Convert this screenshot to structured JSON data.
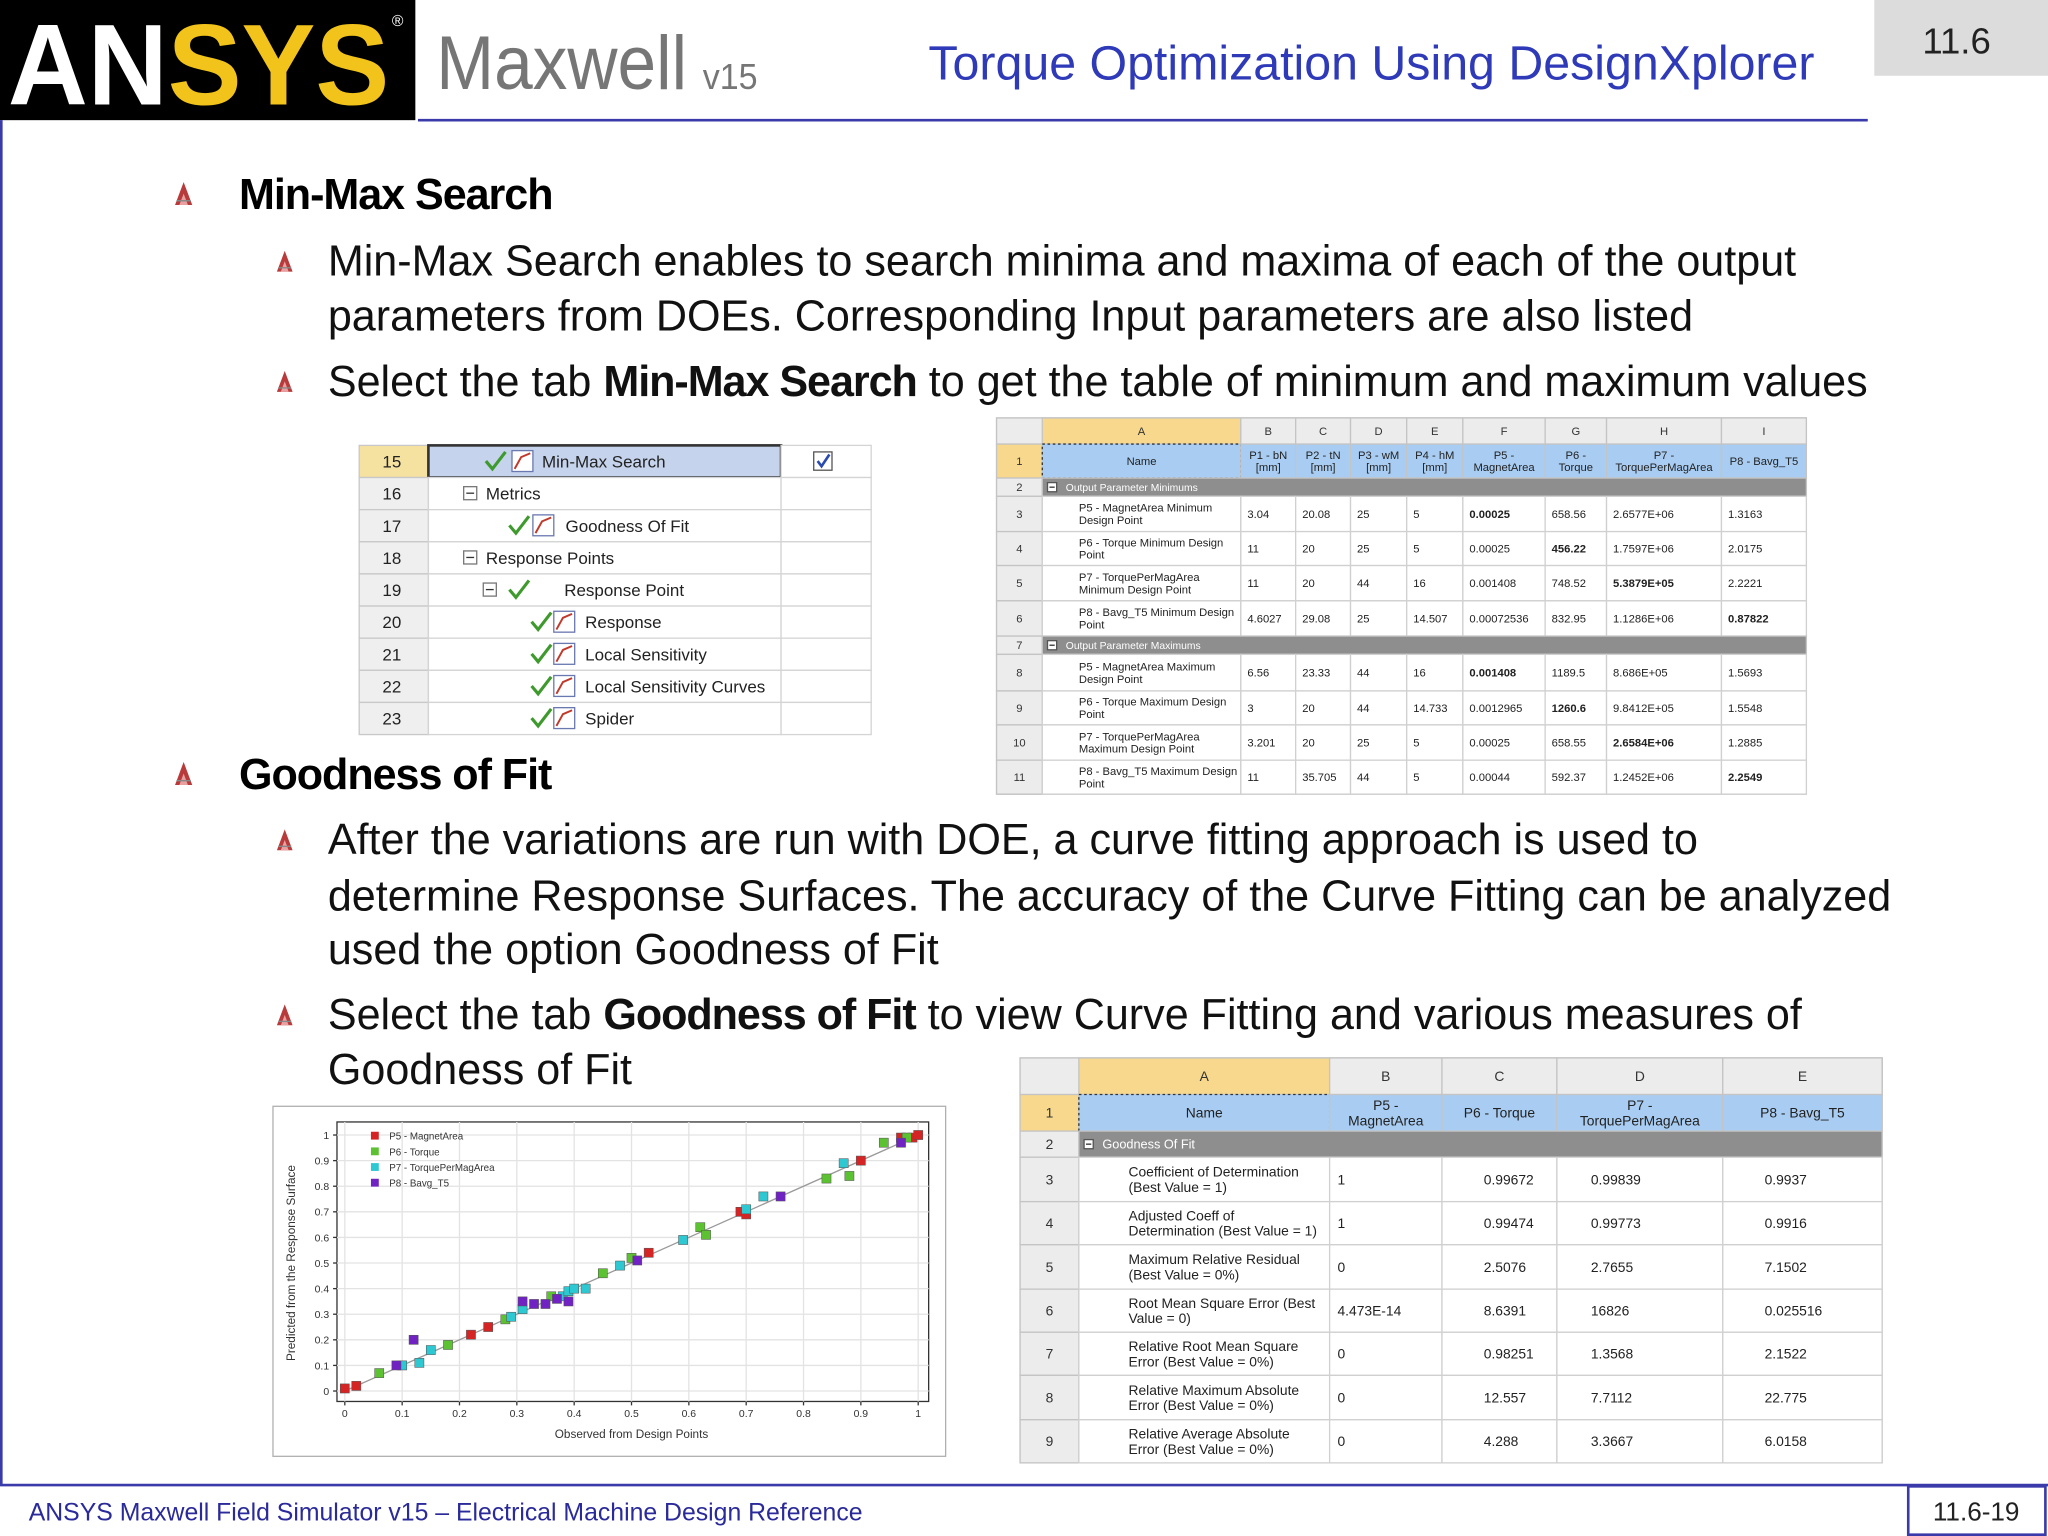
{
  "header": {
    "logo": {
      "part1": "AN",
      "part2": "SYS",
      "mark": "®"
    },
    "product": "Maxwell",
    "version": "v15",
    "title": "Torque Optimization Using DesignXplorer",
    "section": "11.6"
  },
  "sections": [
    {
      "heading": "Min-Max Search",
      "items": [
        {
          "lines": [
            [
              {
                "text": "Min-Max Search enables to search minima and maxima of each of the output"
              }
            ],
            [
              {
                "text": "parameters from DOEs. Corresponding Input parameters are also listed"
              }
            ]
          ]
        },
        {
          "lines": [
            [
              {
                "text": "Select the tab "
              },
              {
                "text": "Min-Max Search",
                "bold": true
              },
              {
                "text": " to get the table of minimum and maximum values"
              }
            ]
          ]
        }
      ]
    },
    {
      "heading": "Goodness of Fit",
      "items": [
        {
          "lines": [
            [
              {
                "text": "After the variations are run with DOE, a curve fitting approach is used to"
              }
            ],
            [
              {
                "text": "determine Response Surfaces. The accuracy of the Curve Fitting can be analyzed"
              }
            ],
            [
              {
                "text": "used the option Goodness of Fit"
              }
            ]
          ]
        },
        {
          "lines": [
            [
              {
                "text": "Select the tab "
              },
              {
                "text": "Goodness of Fit",
                "bold": true
              },
              {
                "text": " to view Curve Fitting and various measures of"
              }
            ],
            [
              {
                "text": "Goodness of Fit"
              }
            ]
          ]
        }
      ]
    }
  ],
  "tree": {
    "rows": [
      {
        "number": "15",
        "label": "Min-Max Search"
      },
      {
        "number": "16",
        "label": "Metrics"
      },
      {
        "number": "17",
        "label": "Goodness Of Fit"
      },
      {
        "number": "18",
        "label": "Response Points"
      },
      {
        "number": "19",
        "label": "Response Point"
      },
      {
        "number": "20",
        "label": "Response"
      },
      {
        "number": "21",
        "label": "Local Sensitivity"
      },
      {
        "number": "22",
        "label": "Local Sensitivity Curves"
      },
      {
        "number": "23",
        "label": "Spider"
      }
    ]
  },
  "min_max_table": {
    "columns": [
      "A",
      "B",
      "C",
      "D",
      "E",
      "F",
      "G",
      "H",
      "I"
    ],
    "row_numbers": [
      "1",
      "2",
      "3",
      "4",
      "5",
      "6",
      "7",
      "8",
      "9",
      "10",
      "11"
    ],
    "header": [
      [
        "Name"
      ],
      [
        "P1 - bN",
        "[mm]"
      ],
      [
        "P2 - tN",
        "[mm]"
      ],
      [
        "P3 - wM",
        "[mm]"
      ],
      [
        "P4 - hM",
        "[mm]"
      ],
      [
        "P5 -",
        "MagnetArea"
      ],
      [
        "P6 -",
        "Torque"
      ],
      [
        "P7 -",
        "TorquePerMagArea"
      ],
      [
        "P8 - Bavg_T5"
      ]
    ],
    "rows": [
      {
        "group": "Output Parameter Minimums"
      },
      {
        "cells": [
          "P5 - MagnetArea Minimum Design Point",
          "3.04",
          "20.08",
          "25",
          "5",
          "0.00025",
          "658.56",
          "2.6577E+06",
          "1.3163"
        ]
      },
      {
        "cells": [
          "P6 - Torque Minimum Design Point",
          "11",
          "20",
          "25",
          "5",
          "0.00025",
          "456.22",
          "1.7597E+06",
          "2.0175"
        ]
      },
      {
        "cells": [
          "P7 - TorquePerMagArea Minimum Design Point",
          "11",
          "20",
          "44",
          "16",
          "0.001408",
          "748.52",
          "5.3879E+05",
          "2.2221"
        ]
      },
      {
        "cells": [
          "P8 - Bavg_T5 Minimum Design Point",
          "4.6027",
          "29.08",
          "25",
          "14.507",
          "0.00072536",
          "832.95",
          "1.1286E+06",
          "0.87822"
        ]
      },
      {
        "group": "Output Parameter Maximums"
      },
      {
        "cells": [
          "P5 - MagnetArea Maximum Design Point",
          "6.56",
          "23.33",
          "44",
          "16",
          "0.001408",
          "1189.5",
          "8.686E+05",
          "1.5693"
        ]
      },
      {
        "cells": [
          "P6 - Torque Maximum Design Point",
          "3",
          "20",
          "44",
          "14.733",
          "0.0012965",
          "1260.6",
          "9.8412E+05",
          "1.5548"
        ]
      },
      {
        "cells": [
          "P7 - TorquePerMagArea Maximum Design Point",
          "3.201",
          "20",
          "25",
          "5",
          "0.00025",
          "658.55",
          "2.6584E+06",
          "1.2885"
        ]
      },
      {
        "cells": [
          "P8 - Bavg_T5 Maximum Design Point",
          "11",
          "35.705",
          "44",
          "5",
          "0.00044",
          "592.37",
          "1.2452E+06",
          "2.2549"
        ]
      }
    ]
  },
  "gof_table": {
    "columns": [
      "A",
      "B",
      "C",
      "D",
      "E"
    ],
    "row_numbers": [
      "1",
      "2",
      "3",
      "4",
      "5",
      "6",
      "7",
      "8",
      "9"
    ],
    "header": [
      [
        "Name"
      ],
      [
        "P5 -",
        "MagnetArea"
      ],
      [
        "P6 - Torque"
      ],
      [
        "P7 -",
        "TorquePerMagArea"
      ],
      [
        "P8 - Bavg_T5"
      ]
    ],
    "rows": [
      {
        "group": "Goodness Of Fit"
      },
      {
        "cells": [
          "Coefficient of Determination (Best Value = 1)",
          "1",
          "0.99672",
          "0.99839",
          "0.9937"
        ]
      },
      {
        "cells": [
          "Adjusted Coeff of Determination (Best Value = 1)",
          "1",
          "0.99474",
          "0.99773",
          "0.9916"
        ]
      },
      {
        "cells": [
          "Maximum Relative Residual (Best Value = 0%)",
          "0",
          "2.5076",
          "2.7655",
          "7.1502"
        ]
      },
      {
        "cells": [
          "Root Mean Square Error (Best Value = 0)",
          "4.473E-14",
          "8.6391",
          "16826",
          "0.025516"
        ]
      },
      {
        "cells": [
          "Relative Root Mean Square Error (Best Value = 0%)",
          "0",
          "0.98251",
          "1.3568",
          "2.1522"
        ]
      },
      {
        "cells": [
          "Relative Maximum Absolute Error (Best Value = 0%)",
          "0",
          "12.557",
          "7.7112",
          "22.775"
        ]
      },
      {
        "cells": [
          "Relative Average Absolute Error (Best Value = 0%)",
          "0",
          "4.288",
          "3.3667",
          "6.0158"
        ]
      }
    ]
  },
  "plot": {
    "type": "scatter",
    "x_label": "Observed from Design Points",
    "y_label": "Predicted from the Response Surface",
    "xlim": [
      0,
      1
    ],
    "ylim": [
      0,
      1
    ],
    "xticks": [
      0,
      0.1,
      0.2,
      0.3,
      0.4,
      0.5,
      0.6,
      0.7,
      0.8,
      0.9,
      1
    ],
    "yticks": [
      0,
      0.1,
      0.2,
      0.3,
      0.4,
      0.5,
      0.6,
      0.7,
      0.8,
      0.9,
      1
    ],
    "grid": true,
    "series": [
      {
        "name": "P5 - MagnetArea",
        "color": "#d42424",
        "x": [
          0,
          0.02,
          0.22,
          0.25,
          0.53,
          0.69,
          0.7,
          0.9,
          0.97,
          0.99,
          1
        ],
        "y": [
          0.01,
          0.02,
          0.22,
          0.25,
          0.54,
          0.7,
          0.69,
          0.9,
          0.99,
          0.99,
          1
        ]
      },
      {
        "name": "P6 - Torque",
        "color": "#5cc232",
        "x": [
          0.06,
          0.18,
          0.28,
          0.36,
          0.45,
          0.5,
          0.62,
          0.63,
          0.84,
          0.88,
          0.94,
          0.98
        ],
        "y": [
          0.07,
          0.18,
          0.28,
          0.37,
          0.46,
          0.52,
          0.64,
          0.61,
          0.83,
          0.84,
          0.97,
          0.99
        ]
      },
      {
        "name": "P7 - TorquePerMagArea",
        "color": "#2ec8d2",
        "x": [
          0.1,
          0.13,
          0.15,
          0.29,
          0.31,
          0.38,
          0.39,
          0.4,
          0.42,
          0.48,
          0.59,
          0.7,
          0.73,
          0.87
        ],
        "y": [
          0.1,
          0.11,
          0.16,
          0.29,
          0.32,
          0.37,
          0.39,
          0.4,
          0.4,
          0.49,
          0.59,
          0.71,
          0.76,
          0.89
        ]
      },
      {
        "name": "P8 - Bavg_T5",
        "color": "#7022c2",
        "x": [
          0.09,
          0.12,
          0.31,
          0.33,
          0.35,
          0.37,
          0.39,
          0.51,
          0.76,
          0.97
        ],
        "y": [
          0.1,
          0.2,
          0.35,
          0.34,
          0.34,
          0.36,
          0.35,
          0.51,
          0.76,
          0.97
        ]
      }
    ]
  },
  "footer": {
    "text": "ANSYS Maxwell Field Simulator v15 – Electrical Machine Design Reference",
    "page": "11.6-19"
  }
}
